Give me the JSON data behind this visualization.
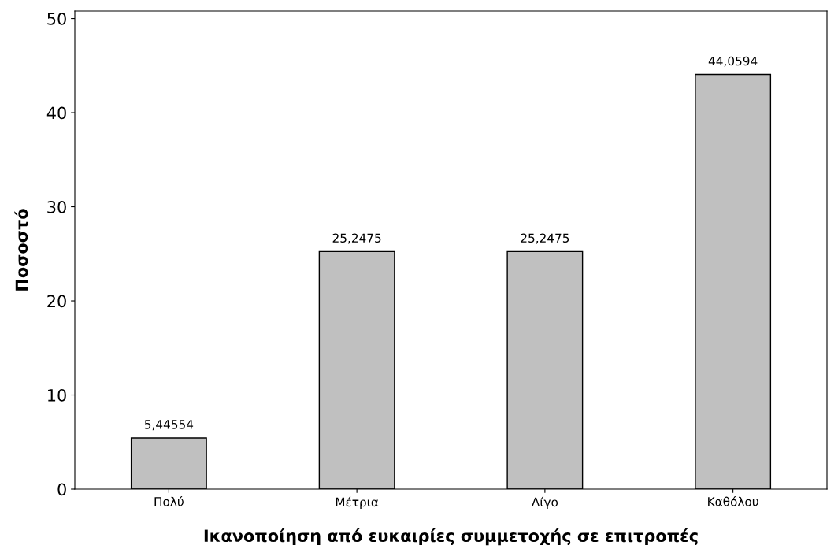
{
  "chart_data": {
    "type": "bar",
    "xlabel": "Ικανοποίηση από ευκαιρίες συμμετοχής σε επιτροπές",
    "ylabel": "Ποσοστό",
    "categories": [
      "Πολύ",
      "Μέτρια",
      "Λίγο",
      "Καθόλου"
    ],
    "values": [
      5.44554,
      25.2475,
      25.2475,
      44.0594
    ],
    "value_labels": [
      "5,44554",
      "25,2475",
      "25,2475",
      "44,0594"
    ],
    "color": "#c0c0c0",
    "ylim": [
      0,
      50.8
    ],
    "yticks": [
      0,
      10,
      20,
      30,
      40,
      50
    ],
    "grid": false,
    "legend": false
  }
}
